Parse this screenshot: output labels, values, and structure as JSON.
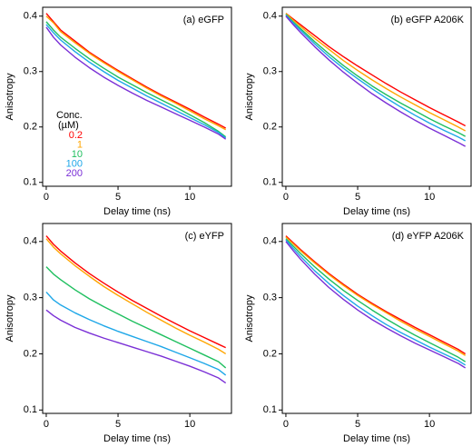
{
  "chart_data": [
    {
      "type": "line",
      "title": "(a) eGFP",
      "xlabel": "Delay time (ns)",
      "ylabel": "Anisotropy",
      "xlim": [
        -0.25,
        12.9
      ],
      "ylim": [
        0.093,
        0.416
      ],
      "xticks": [
        0,
        5,
        10
      ],
      "yticks": [
        0.1,
        0.2,
        0.3,
        0.4
      ],
      "legend": true,
      "legend_title": "Conc.",
      "legend_subtitle": "(µM)",
      "x": [
        0,
        0.5,
        1,
        2,
        3,
        4,
        5,
        6,
        7,
        8,
        9,
        10,
        11,
        12,
        12.5
      ],
      "series": [
        {
          "name": "0.2",
          "color": "#ff0000",
          "values": [
            0.405,
            0.39,
            0.375,
            0.355,
            0.335,
            0.318,
            0.302,
            0.287,
            0.272,
            0.258,
            0.245,
            0.232,
            0.218,
            0.205,
            0.198
          ]
        },
        {
          "name": "1",
          "color": "#ffa500",
          "values": [
            0.4,
            0.388,
            0.372,
            0.352,
            0.333,
            0.316,
            0.3,
            0.285,
            0.27,
            0.256,
            0.243,
            0.229,
            0.215,
            0.202,
            0.195
          ]
        },
        {
          "name": "10",
          "color": "#1fbf5f",
          "values": [
            0.39,
            0.375,
            0.362,
            0.342,
            0.323,
            0.306,
            0.29,
            0.276,
            0.262,
            0.249,
            0.236,
            0.222,
            0.208,
            0.192,
            0.182
          ]
        },
        {
          "name": "100",
          "color": "#1ea7e8",
          "values": [
            0.385,
            0.37,
            0.357,
            0.336,
            0.317,
            0.3,
            0.284,
            0.27,
            0.256,
            0.243,
            0.23,
            0.217,
            0.204,
            0.19,
            0.18
          ]
        },
        {
          "name": "200",
          "color": "#7a2fd6",
          "values": [
            0.38,
            0.362,
            0.348,
            0.326,
            0.307,
            0.29,
            0.275,
            0.261,
            0.248,
            0.236,
            0.224,
            0.212,
            0.2,
            0.187,
            0.178
          ]
        }
      ]
    },
    {
      "type": "line",
      "title": "(b) eGFP A206K",
      "xlabel": "Delay time (ns)",
      "ylabel": "Anisotropy",
      "xlim": [
        -0.25,
        12.9
      ],
      "ylim": [
        0.093,
        0.416
      ],
      "xticks": [
        0,
        5,
        10
      ],
      "yticks": [
        0.1,
        0.2,
        0.3,
        0.4
      ],
      "x": [
        0,
        0.5,
        1,
        2,
        3,
        4,
        5,
        6,
        7,
        8,
        9,
        10,
        11,
        12,
        12.5
      ],
      "series": [
        {
          "color": "#ff0000",
          "values": [
            0.405,
            0.395,
            0.385,
            0.365,
            0.345,
            0.327,
            0.31,
            0.294,
            0.278,
            0.263,
            0.249,
            0.235,
            0.222,
            0.209,
            0.202
          ]
        },
        {
          "color": "#ffa500",
          "values": [
            0.405,
            0.393,
            0.382,
            0.36,
            0.34,
            0.32,
            0.302,
            0.285,
            0.269,
            0.254,
            0.24,
            0.226,
            0.213,
            0.2,
            0.193
          ]
        },
        {
          "color": "#1fbf5f",
          "values": [
            0.403,
            0.39,
            0.378,
            0.354,
            0.332,
            0.311,
            0.292,
            0.274,
            0.258,
            0.243,
            0.229,
            0.215,
            0.202,
            0.19,
            0.183
          ]
        },
        {
          "color": "#1ea7e8",
          "values": [
            0.402,
            0.388,
            0.375,
            0.35,
            0.327,
            0.306,
            0.287,
            0.269,
            0.252,
            0.236,
            0.221,
            0.207,
            0.194,
            0.182,
            0.175
          ]
        },
        {
          "color": "#7a2fd6",
          "values": [
            0.4,
            0.385,
            0.371,
            0.345,
            0.321,
            0.299,
            0.279,
            0.26,
            0.243,
            0.227,
            0.212,
            0.198,
            0.185,
            0.172,
            0.165
          ]
        }
      ]
    },
    {
      "type": "line",
      "title": "(c) eYFP",
      "xlabel": "Delay time (ns)",
      "ylabel": "Anisotropy",
      "xlim": [
        -0.25,
        12.9
      ],
      "ylim": [
        0.094,
        0.432
      ],
      "xticks": [
        0,
        5,
        10
      ],
      "yticks": [
        0.1,
        0.2,
        0.3,
        0.4
      ],
      "x": [
        0,
        0.5,
        1,
        2,
        3,
        4,
        5,
        6,
        7,
        8,
        9,
        10,
        11,
        12,
        12.5
      ],
      "series": [
        {
          "color": "#ff0000",
          "values": [
            0.41,
            0.395,
            0.383,
            0.362,
            0.343,
            0.326,
            0.31,
            0.295,
            0.281,
            0.267,
            0.254,
            0.241,
            0.229,
            0.217,
            0.211
          ]
        },
        {
          "color": "#ffa500",
          "values": [
            0.405,
            0.39,
            0.378,
            0.357,
            0.338,
            0.32,
            0.304,
            0.289,
            0.274,
            0.26,
            0.246,
            0.233,
            0.221,
            0.208,
            0.2
          ]
        },
        {
          "color": "#1fbf5f",
          "values": [
            0.355,
            0.342,
            0.332,
            0.314,
            0.298,
            0.284,
            0.271,
            0.258,
            0.246,
            0.234,
            0.222,
            0.21,
            0.198,
            0.186,
            0.175
          ]
        },
        {
          "color": "#1ea7e8",
          "values": [
            0.31,
            0.296,
            0.287,
            0.273,
            0.261,
            0.25,
            0.24,
            0.231,
            0.222,
            0.213,
            0.203,
            0.193,
            0.183,
            0.172,
            0.162
          ]
        },
        {
          "color": "#7a2fd6",
          "values": [
            0.278,
            0.268,
            0.26,
            0.247,
            0.237,
            0.228,
            0.22,
            0.212,
            0.204,
            0.196,
            0.187,
            0.178,
            0.168,
            0.157,
            0.148
          ]
        }
      ]
    },
    {
      "type": "line",
      "title": "(d) eYFP A206K",
      "xlabel": "Delay time (ns)",
      "ylabel": "Anisotropy",
      "xlim": [
        -0.25,
        12.9
      ],
      "ylim": [
        0.094,
        0.432
      ],
      "xticks": [
        0,
        5,
        10
      ],
      "yticks": [
        0.1,
        0.2,
        0.3,
        0.4
      ],
      "x": [
        0,
        0.5,
        1,
        2,
        3,
        4,
        5,
        6,
        7,
        8,
        9,
        10,
        11,
        12,
        12.5
      ],
      "series": [
        {
          "color": "#ff0000",
          "values": [
            0.41,
            0.398,
            0.386,
            0.364,
            0.343,
            0.324,
            0.306,
            0.29,
            0.275,
            0.261,
            0.247,
            0.234,
            0.221,
            0.208,
            0.2
          ]
        },
        {
          "color": "#ffa500",
          "values": [
            0.408,
            0.396,
            0.384,
            0.362,
            0.341,
            0.322,
            0.304,
            0.288,
            0.273,
            0.258,
            0.244,
            0.231,
            0.218,
            0.205,
            0.197
          ]
        },
        {
          "color": "#1fbf5f",
          "values": [
            0.405,
            0.392,
            0.379,
            0.355,
            0.333,
            0.313,
            0.295,
            0.278,
            0.262,
            0.247,
            0.233,
            0.22,
            0.207,
            0.194,
            0.186
          ]
        },
        {
          "color": "#1ea7e8",
          "values": [
            0.403,
            0.388,
            0.374,
            0.348,
            0.325,
            0.304,
            0.285,
            0.268,
            0.252,
            0.238,
            0.225,
            0.212,
            0.2,
            0.188,
            0.18
          ]
        },
        {
          "color": "#7a2fd6",
          "values": [
            0.4,
            0.384,
            0.369,
            0.342,
            0.318,
            0.297,
            0.278,
            0.261,
            0.246,
            0.232,
            0.219,
            0.207,
            0.195,
            0.183,
            0.175
          ]
        }
      ]
    }
  ]
}
